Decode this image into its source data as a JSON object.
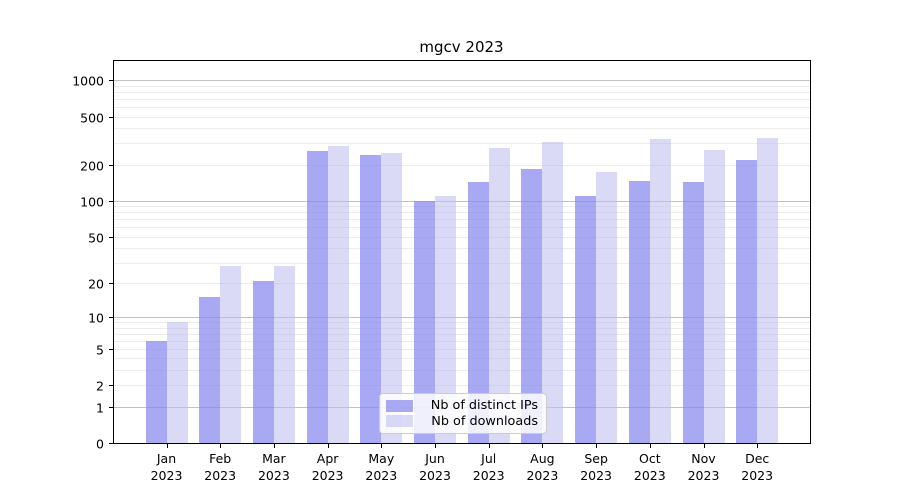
{
  "chart_data": {
    "type": "bar",
    "title": "mgcv 2023",
    "y_scale": "log1p",
    "ylim": [
      0,
      1500
    ],
    "yticks": [
      0,
      1,
      2,
      5,
      10,
      20,
      50,
      100,
      200,
      500,
      1000
    ],
    "categories": [
      "Jan",
      "Feb",
      "Mar",
      "Apr",
      "May",
      "Jun",
      "Jul",
      "Aug",
      "Sep",
      "Oct",
      "Nov",
      "Dec"
    ],
    "year_label": "2023",
    "series": [
      {
        "name": "Nb of distinct IPs",
        "color": "#8888ee",
        "values": [
          6,
          15,
          21,
          260,
          240,
          100,
          143,
          183,
          110,
          146,
          143,
          218
        ]
      },
      {
        "name": "Nb of downloads",
        "color": "#bbbbf0",
        "values": [
          9,
          28,
          28,
          283,
          248,
          110,
          273,
          305,
          173,
          324,
          263,
          330
        ]
      }
    ],
    "legend_position": "lower-center",
    "grid": true,
    "colors": {
      "major_grid": "#c2c2c2",
      "minor_grid": "#ececec",
      "axis": "#000000",
      "background": "#ffffff"
    }
  }
}
